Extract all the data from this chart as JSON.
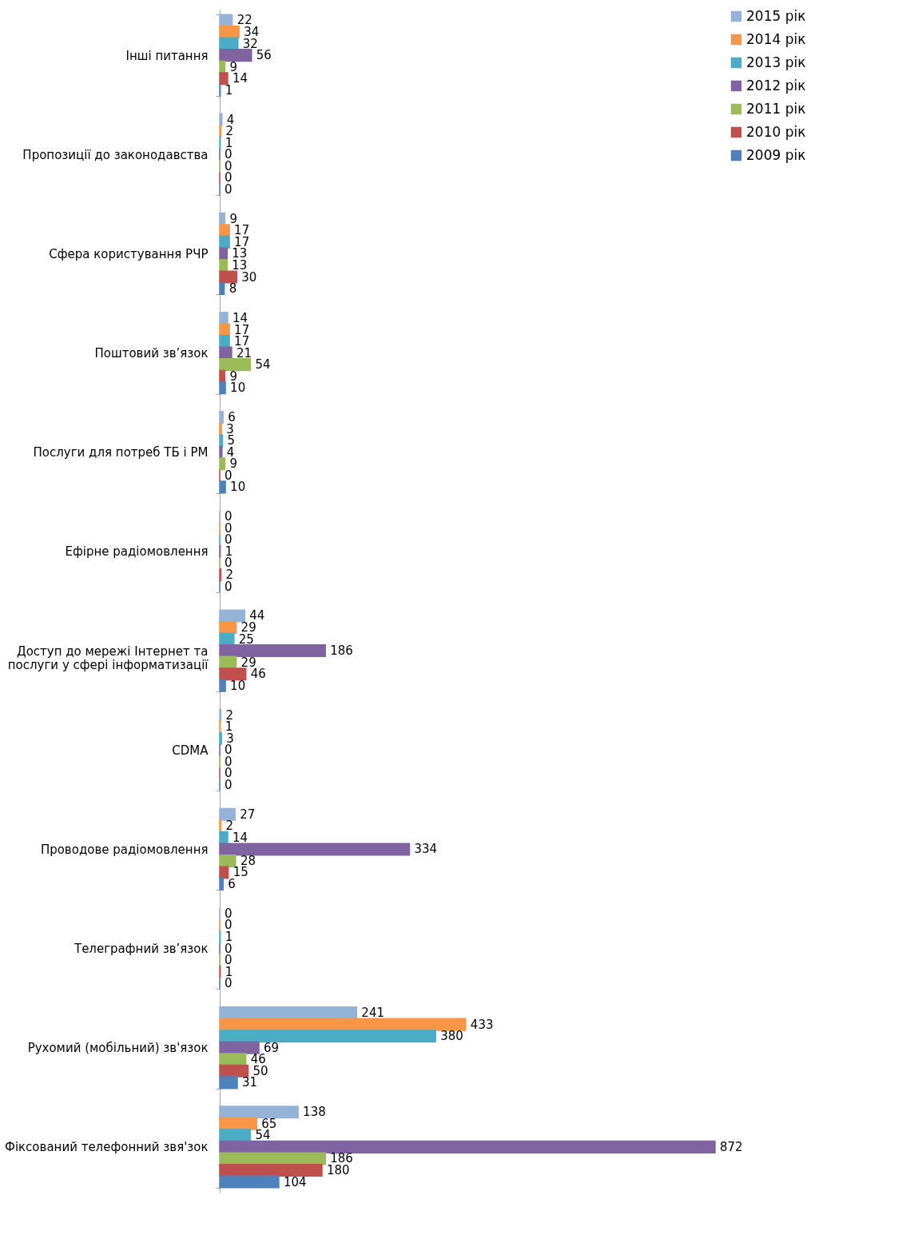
{
  "chart_data": {
    "type": "bar",
    "orientation": "horizontal",
    "data_labels": true,
    "legend": "right",
    "grid": false,
    "categories": [
      "Інші питання",
      "Пропозиції до законодавства",
      "Сфера користування РЧР",
      "Поштовий зв’язок",
      "Послуги для потреб ТБ і РМ",
      "Ефірне радіомовлення",
      "Доступ до мережі Інтернет та послуги у сфері інформатизації",
      "CDMA",
      "Проводове радіомовлення",
      "Телеграфний зв’язок",
      "Рухомий (мобільний) зв'язок",
      "Фіксований телефонний звя'зок"
    ],
    "series": [
      {
        "name": "2015 рік",
        "color": "#95b3d7",
        "values": [
          22,
          4,
          9,
          14,
          6,
          0,
          44,
          2,
          27,
          0,
          241,
          138
        ]
      },
      {
        "name": "2014 рік",
        "color": "#f79646",
        "values": [
          34,
          2,
          17,
          17,
          3,
          0,
          29,
          1,
          2,
          0,
          433,
          65
        ]
      },
      {
        "name": "2013 рік",
        "color": "#4bacc6",
        "values": [
          32,
          1,
          17,
          17,
          5,
          0,
          25,
          3,
          14,
          1,
          380,
          54
        ]
      },
      {
        "name": "2012 рік",
        "color": "#8064a2",
        "values": [
          56,
          0,
          13,
          21,
          4,
          1,
          186,
          0,
          334,
          0,
          69,
          872
        ]
      },
      {
        "name": "2011 рік",
        "color": "#9bbb59",
        "values": [
          9,
          0,
          13,
          54,
          9,
          0,
          29,
          0,
          28,
          0,
          46,
          186
        ]
      },
      {
        "name": "2010 рік",
        "color": "#c0504d",
        "values": [
          14,
          0,
          30,
          9,
          0,
          2,
          46,
          0,
          15,
          1,
          50,
          180
        ]
      },
      {
        "name": "2009 рік",
        "color": "#4f81bd",
        "values": [
          1,
          0,
          8,
          10,
          10,
          0,
          10,
          0,
          6,
          0,
          31,
          104
        ]
      }
    ]
  }
}
